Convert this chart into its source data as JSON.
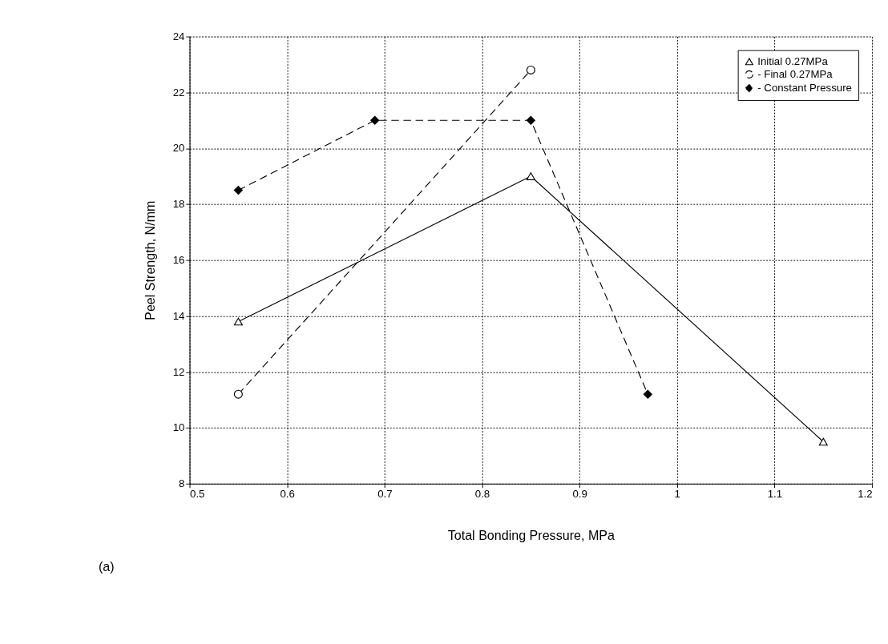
{
  "chart_data": {
    "type": "line",
    "xlabel": "Total Bonding Pressure, MPa",
    "ylabel": "Peel Strength, N/mm",
    "xlim": [
      0.5,
      1.2
    ],
    "xticks": [
      0.5,
      0.6,
      0.7,
      0.8,
      0.9,
      1,
      1.1,
      1.2
    ],
    "ylim": [
      8,
      24
    ],
    "yticks": [
      8,
      10,
      12,
      14,
      16,
      18,
      20,
      22,
      24
    ],
    "grid": true,
    "legend": "top right",
    "annotations": [
      "(a)"
    ],
    "series": [
      {
        "name": "Initial 0.27MPa",
        "color": "#000000",
        "marker": "triangle",
        "line_style": "solid",
        "x": [
          0.55,
          0.85,
          1.15
        ],
        "values": [
          13.8,
          19.0,
          9.5
        ]
      },
      {
        "name": "- Final 0.27MPa",
        "color": "#000000",
        "marker": "circle",
        "line_style": "dashed",
        "x": [
          0.55,
          0.85
        ],
        "values": [
          11.2,
          22.8
        ]
      },
      {
        "name": "- Constant Pressure",
        "color": "#000000",
        "marker": "diamond",
        "line_style": "dashed",
        "x": [
          0.55,
          0.69,
          0.85,
          0.97
        ],
        "values": [
          18.5,
          21.0,
          21.0,
          11.2
        ]
      }
    ]
  }
}
